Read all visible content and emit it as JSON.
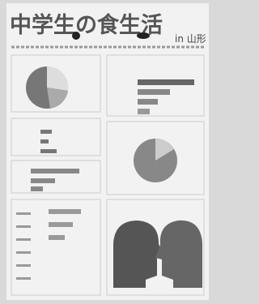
{
  "header": {
    "title": "中学生の食生活",
    "location": "in 山形"
  }
}
